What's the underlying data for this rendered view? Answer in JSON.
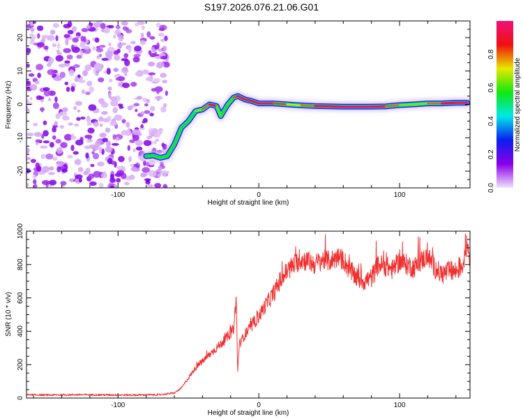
{
  "title": "S197.2026.076.21.06.G01",
  "chart_data": [
    {
      "type": "heatmap",
      "name": "spectrogram",
      "title": "S197.2026.076.21.06.G01",
      "xlabel": "Height of straight line (km)",
      "ylabel": "Frequency (Hz)",
      "xlim": [
        -165,
        150
      ],
      "ylim": [
        -25,
        25
      ],
      "xticks": [
        -100,
        0,
        100
      ],
      "yticks": [
        -20,
        -10,
        0,
        10,
        20
      ],
      "noise_region_x": [
        -165,
        -65
      ],
      "ridge": {
        "x": [
          -80,
          -75,
          -70,
          -65,
          -60,
          -55,
          -50,
          -45,
          -40,
          -35,
          -30,
          -27,
          -25,
          -22,
          -18,
          -15,
          -10,
          -5,
          0,
          10,
          20,
          30,
          40,
          60,
          80,
          90,
          100,
          110,
          120,
          130,
          140,
          148
        ],
        "freq": [
          -15.5,
          -15.3,
          -16,
          -15.5,
          -12,
          -7,
          -5,
          -2,
          -1.5,
          0,
          -0.5,
          -3.5,
          -2,
          0,
          2,
          2.5,
          1.5,
          1,
          0.3,
          0.3,
          0,
          -0.3,
          -0.5,
          -0.7,
          -0.7,
          -0.6,
          -0.2,
          0,
          0.3,
          0.3,
          0.5,
          0.5
        ],
        "amplitude": [
          0.25,
          0.2,
          0.3,
          0.3,
          0.4,
          0.45,
          0.5,
          0.6,
          0.7,
          0.9,
          0.95,
          0.3,
          0.4,
          0.5,
          0.7,
          0.95,
          0.95,
          0.9,
          0.95,
          0.95,
          0.7,
          0.7,
          0.9,
          0.95,
          0.95,
          0.9,
          0.7,
          0.6,
          0.7,
          0.9,
          0.95,
          0.95
        ]
      },
      "colorbar": {
        "label": "Normalized spectral amplitude",
        "ticks": [
          "0.0",
          "0.2",
          "0.4",
          "0.6",
          "0.8"
        ],
        "range": [
          0,
          1
        ],
        "colors": [
          "#f0e4fb",
          "#8a00e8",
          "#0a1ef0",
          "#00e8e8",
          "#10e810",
          "#e8e800",
          "#f01010",
          "#f0107a"
        ]
      }
    },
    {
      "type": "line",
      "name": "snr",
      "xlabel": "Height of straight line (km)",
      "ylabel": "SNR (10 * v/v)",
      "xlim": [
        -165,
        150
      ],
      "ylim": [
        0,
        1000
      ],
      "xticks": [
        -100,
        0,
        100
      ],
      "yticks": [
        0,
        200,
        400,
        600,
        800,
        1000
      ],
      "color": "#f03030",
      "series": [
        {
          "name": "SNR",
          "x": [
            -165,
            -150,
            -130,
            -110,
            -90,
            -70,
            -60,
            -55,
            -50,
            -45,
            -40,
            -35,
            -30,
            -25,
            -20,
            -18,
            -16,
            -15,
            -14,
            -12,
            -10,
            -5,
            0,
            5,
            10,
            15,
            20,
            25,
            30,
            35,
            40,
            45,
            50,
            55,
            60,
            65,
            70,
            75,
            80,
            85,
            90,
            95,
            100,
            105,
            110,
            115,
            120,
            125,
            130,
            135,
            140,
            145,
            148,
            150
          ],
          "y": [
            20,
            18,
            20,
            19,
            18,
            20,
            30,
            60,
            120,
            180,
            220,
            260,
            300,
            340,
            390,
            410,
            600,
            150,
            320,
            350,
            380,
            430,
            490,
            560,
            620,
            700,
            760,
            800,
            830,
            820,
            800,
            830,
            820,
            840,
            830,
            760,
            720,
            700,
            720,
            800,
            790,
            770,
            820,
            800,
            780,
            820,
            850,
            780,
            740,
            760,
            760,
            800,
            930,
            840
          ]
        }
      ]
    }
  ]
}
